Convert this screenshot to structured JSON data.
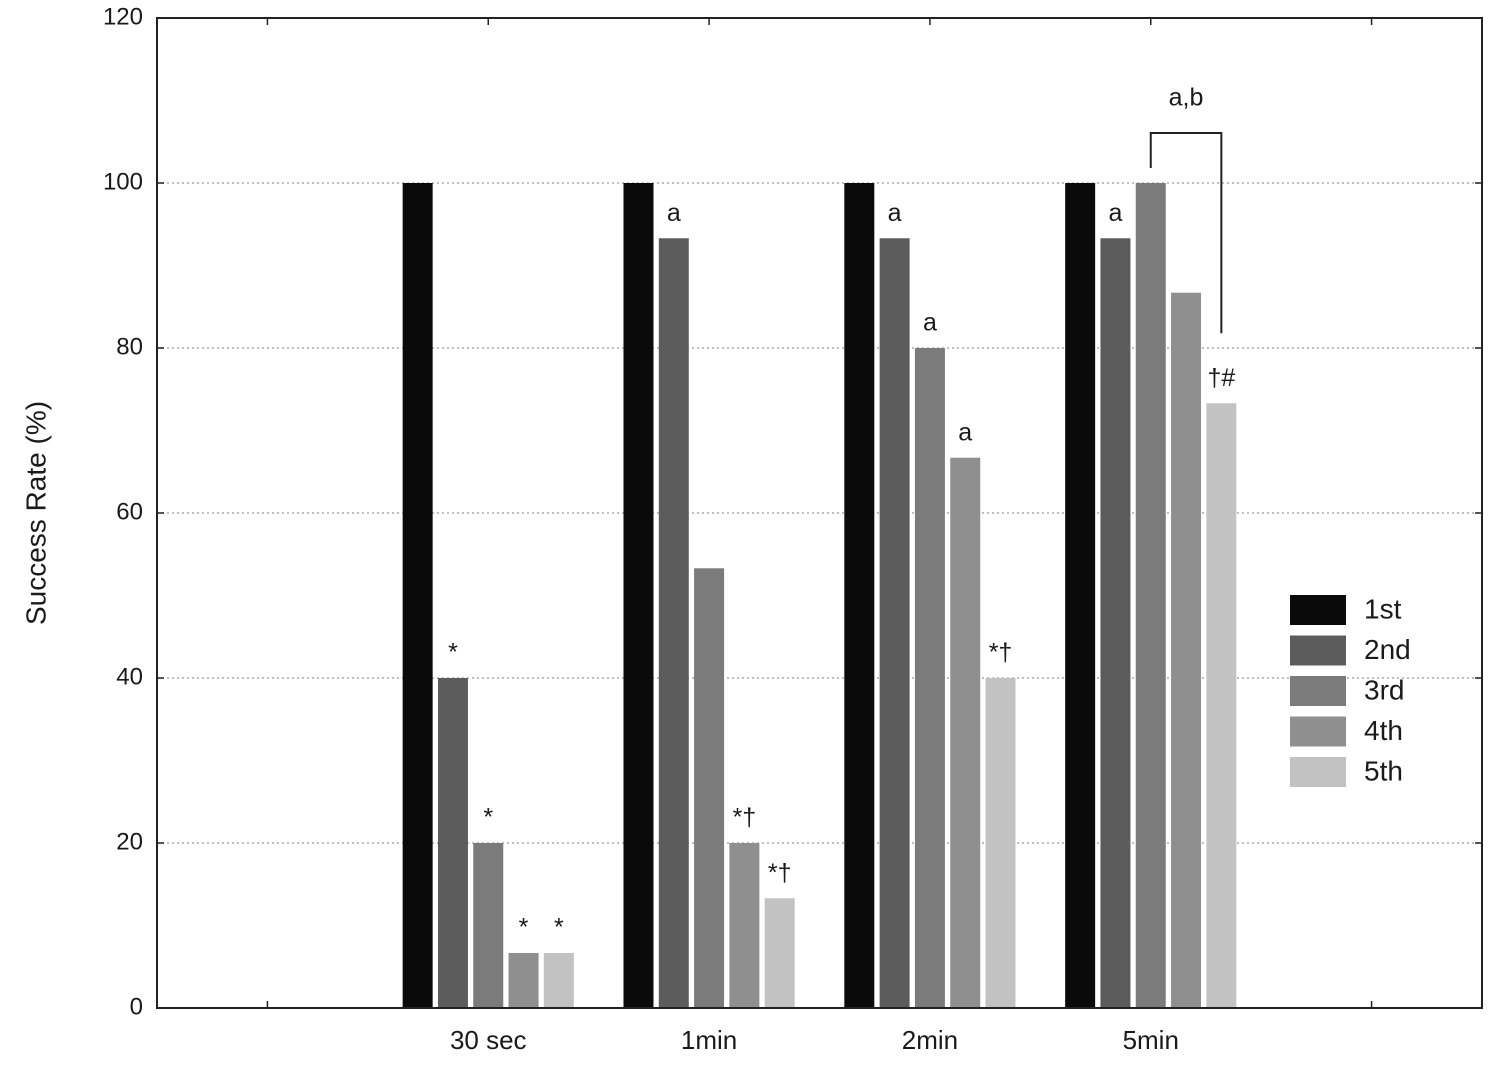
{
  "chart_data": {
    "type": "bar",
    "y_label": "Success Rate (%)",
    "categories": [
      null,
      "30 sec",
      "1min",
      "2min",
      "5min",
      null
    ],
    "series": [
      {
        "name": "1st",
        "color": "#0a0a0a",
        "values": [
          null,
          100,
          100,
          100,
          100,
          null
        ]
      },
      {
        "name": "2nd",
        "color": "#5c5c5c",
        "values": [
          null,
          40,
          93.3,
          93.3,
          93.3,
          null
        ],
        "labels": [
          null,
          "*",
          "a",
          "a",
          "a",
          null
        ]
      },
      {
        "name": "3rd",
        "color": "#7b7b7b",
        "values": [
          null,
          20,
          53.3,
          80,
          100,
          null
        ],
        "labels": [
          null,
          "*",
          null,
          "a",
          null,
          null
        ]
      },
      {
        "name": "4th",
        "color": "#8f8f8f",
        "values": [
          null,
          6.67,
          20,
          66.7,
          86.7,
          null
        ],
        "labels": [
          null,
          "*",
          "*†",
          "a",
          null,
          null
        ]
      },
      {
        "name": "5th",
        "color": "#c2c2c2",
        "values": [
          null,
          6.67,
          13.3,
          40,
          73.3,
          null
        ],
        "labels": [
          null,
          "*",
          "*†",
          "*†",
          "†#",
          null
        ]
      }
    ],
    "bracket": {
      "text": "a,b"
    },
    "ylim": [
      0,
      120
    ],
    "yticks": [
      0,
      20,
      40,
      60,
      80,
      100,
      120
    ],
    "grid": true,
    "legend": "right"
  }
}
